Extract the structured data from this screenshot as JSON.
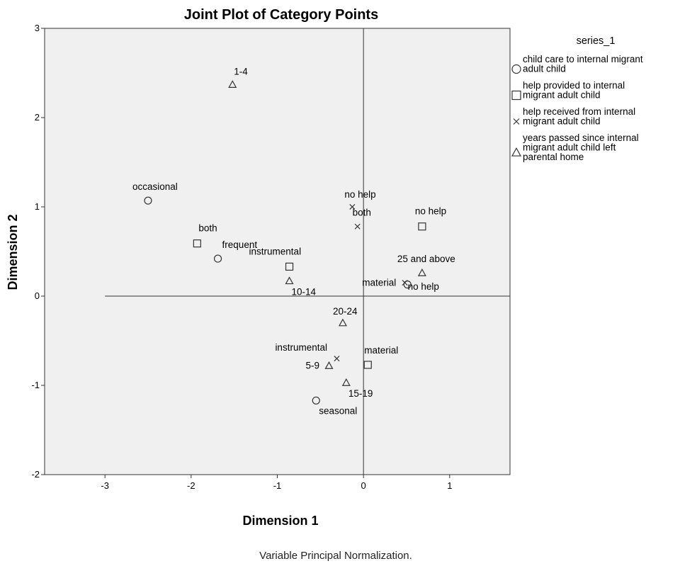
{
  "chart_data": {
    "type": "scatter",
    "title": "Joint Plot of Category Points",
    "xlabel": "Dimension 1",
    "ylabel": "Dimension 2",
    "footnote": "Variable Principal Normalization.",
    "xlim": [
      -3.7,
      1.7
    ],
    "ylim": [
      -2,
      3
    ],
    "x_ticks": [
      -3,
      -2,
      -1,
      0,
      1
    ],
    "y_ticks": [
      -2,
      -1,
      0,
      1,
      2,
      3
    ],
    "grid": false,
    "reference_lines": {
      "vertical_x": 0,
      "horizontal_y": 0,
      "horizontal_from_x": -3
    },
    "legend": {
      "title": "series_1",
      "placement": "right",
      "entries": [
        {
          "marker": "circle",
          "lines": [
            "child care to internal migrant",
            "adult child"
          ]
        },
        {
          "marker": "square",
          "lines": [
            "help provided to internal",
            "migrant adult child"
          ]
        },
        {
          "marker": "cross",
          "lines": [
            "help received from internal",
            "migrant adult child"
          ]
        },
        {
          "marker": "triangle",
          "lines": [
            "years passed since internal",
            "migrant adult child left",
            "parental home"
          ]
        }
      ]
    },
    "series": [
      {
        "marker": "circle",
        "points": [
          {
            "label": "occasional",
            "x": -2.5,
            "y": 1.07
          },
          {
            "label": "frequent",
            "x": -1.69,
            "y": 0.42
          },
          {
            "label": "seasonal",
            "x": -0.55,
            "y": -1.17
          },
          {
            "label": "material",
            "x": 0.51,
            "y": 0.13
          }
        ]
      },
      {
        "marker": "square",
        "points": [
          {
            "label": "both",
            "x": -1.93,
            "y": 0.59
          },
          {
            "label": "instrumental",
            "x": -0.86,
            "y": 0.33
          },
          {
            "label": "material",
            "x": 0.05,
            "y": -0.77
          },
          {
            "label": "no help",
            "x": 0.68,
            "y": 0.78
          }
        ]
      },
      {
        "marker": "cross",
        "points": [
          {
            "label": "no help",
            "x": -0.13,
            "y": 1.0
          },
          {
            "label": "both",
            "x": -0.07,
            "y": 0.78
          },
          {
            "label": "instrumental",
            "x": -0.31,
            "y": -0.7
          },
          {
            "label": "no help",
            "x": 0.48,
            "y": 0.15
          }
        ]
      },
      {
        "marker": "triangle",
        "points": [
          {
            "label": "1-4",
            "x": -1.52,
            "y": 2.37
          },
          {
            "label": "10-14",
            "x": -0.86,
            "y": 0.17
          },
          {
            "label": "25 and above",
            "x": 0.68,
            "y": 0.26
          },
          {
            "label": "20-24",
            "x": -0.24,
            "y": -0.3
          },
          {
            "label": "5-9",
            "x": -0.4,
            "y": -0.78
          },
          {
            "label": "15-19",
            "x": -0.2,
            "y": -0.97
          }
        ]
      }
    ]
  }
}
